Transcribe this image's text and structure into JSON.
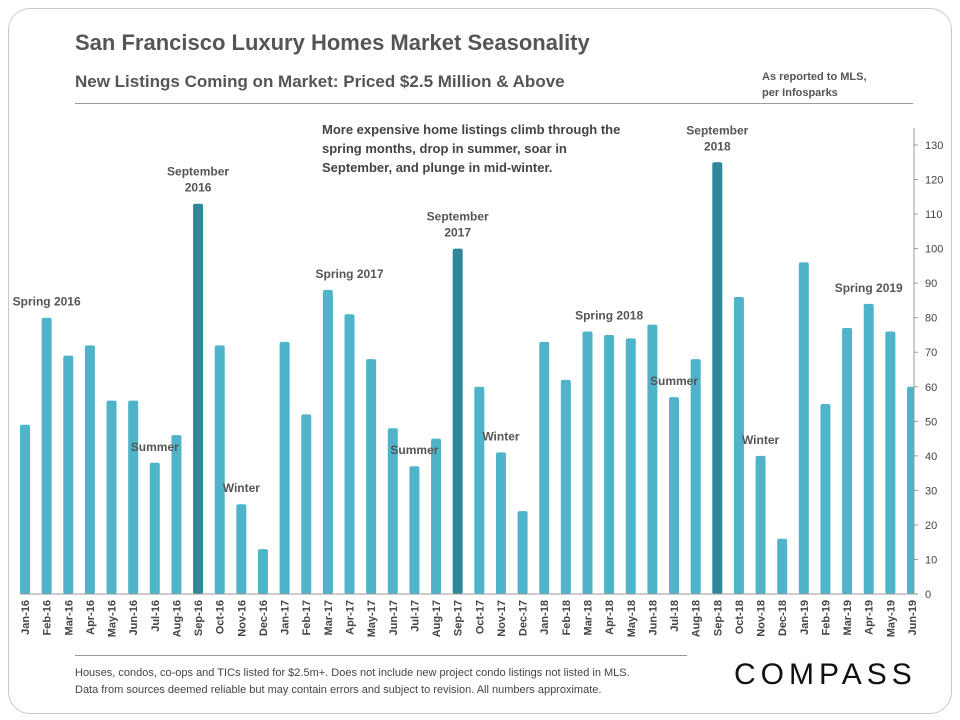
{
  "title": "San Francisco Luxury Homes Market Seasonality",
  "subtitle": "New Listings Coming on Market:  Priced $2.5 Million & Above",
  "note": [
    "As reported to MLS,",
    "per Infosparks"
  ],
  "commentary": "More expensive home listings climb through the spring months, drop in summer, soar in September, and plunge in mid-winter.",
  "footer": [
    "Houses, condos, co-ops and TICs listed for $2.5m+. Does not include new project condo listings not listed in MLS.",
    "Data from sources deemed reliable but may contain  errors and subject to revision.  All numbers approximate."
  ],
  "logo": "COMPASS",
  "colors": {
    "bar": "#4fb3c9",
    "highlight": "#2f8799",
    "text": "#555555",
    "axis": "#444444"
  },
  "chart_data": {
    "type": "bar",
    "categories": [
      "Jan-16",
      "Feb-16",
      "Mar-16",
      "Apr-16",
      "May-16",
      "Jun-16",
      "Jul-16",
      "Aug-16",
      "Sep-16",
      "Oct-16",
      "Nov-16",
      "Dec-16",
      "Jan-17",
      "Feb-17",
      "Mar-17",
      "Apr-17",
      "May-17",
      "Jun-17",
      "Jul-17",
      "Aug-17",
      "Sep-17",
      "Oct-17",
      "Nov-17",
      "Dec-17",
      "Jan-18",
      "Feb-18",
      "Mar-18",
      "Apr-18",
      "May-18",
      "Jun-18",
      "Jul-18",
      "Aug-18",
      "Sep-18",
      "Oct-18",
      "Nov-18",
      "Dec-18",
      "Jan-19",
      "Feb-19",
      "Mar-19",
      "Apr-19",
      "May-19",
      "Jun-19"
    ],
    "values": [
      49,
      80,
      69,
      72,
      56,
      56,
      38,
      46,
      113,
      72,
      26,
      13,
      73,
      52,
      88,
      81,
      68,
      48,
      37,
      45,
      100,
      60,
      41,
      24,
      73,
      62,
      76,
      75,
      74,
      78,
      57,
      68,
      125,
      86,
      40,
      16,
      96,
      55,
      77,
      84,
      76,
      60
    ],
    "highlighted": [
      "Sep-16",
      "Sep-17",
      "Sep-18"
    ],
    "y_axis": {
      "position": "right",
      "min": 0,
      "max": 130,
      "ticks": [
        0,
        10,
        20,
        30,
        40,
        50,
        60,
        70,
        80,
        90,
        100,
        110,
        120,
        130
      ]
    },
    "annotations": [
      {
        "lines": [
          "Spring 2016"
        ],
        "category": "Feb-16",
        "value": 80
      },
      {
        "lines": [
          "Summer"
        ],
        "category": "Jul-16",
        "value": 38
      },
      {
        "lines": [
          "September",
          "2016"
        ],
        "category": "Sep-16",
        "value": 113
      },
      {
        "lines": [
          "Winter"
        ],
        "category": "Nov-16",
        "value": 26
      },
      {
        "lines": [
          "Spring 2017"
        ],
        "category": "Apr-17",
        "value": 88
      },
      {
        "lines": [
          "Summer"
        ],
        "category": "Jul-17",
        "value": 37
      },
      {
        "lines": [
          "September",
          "2017"
        ],
        "category": "Sep-17",
        "value": 100
      },
      {
        "lines": [
          "Winter"
        ],
        "category": "Nov-17",
        "value": 41
      },
      {
        "lines": [
          "Spring 2018"
        ],
        "category": "Apr-18",
        "value": 76
      },
      {
        "lines": [
          "Summer"
        ],
        "category": "Jul-18",
        "value": 57
      },
      {
        "lines": [
          "September",
          "2018"
        ],
        "category": "Sep-18",
        "value": 125
      },
      {
        "lines": [
          "Winter"
        ],
        "category": "Nov-18",
        "value": 40
      },
      {
        "lines": [
          "Spring 2019"
        ],
        "category": "Apr-19",
        "value": 84
      }
    ]
  }
}
